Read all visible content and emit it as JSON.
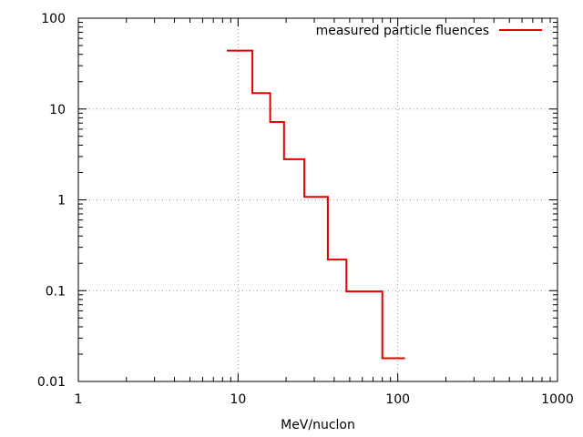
{
  "chart_data": {
    "type": "line",
    "step": true,
    "title": "",
    "xlabel": "MeV/nuclon",
    "ylabel": "",
    "x_scale": "log",
    "y_scale": "log",
    "xlim": [
      1,
      1000
    ],
    "ylim": [
      0.01,
      100
    ],
    "grid": true,
    "legend_position": "top-right",
    "x_ticks": [
      {
        "value": 1,
        "label": "1"
      },
      {
        "value": 10,
        "label": "10"
      },
      {
        "value": 100,
        "label": "100"
      },
      {
        "value": 1000,
        "label": "1000"
      }
    ],
    "y_ticks": [
      {
        "value": 0.01,
        "label": "0.01"
      },
      {
        "value": 0.1,
        "label": "0.1"
      },
      {
        "value": 1,
        "label": "1"
      },
      {
        "value": 10,
        "label": "10"
      },
      {
        "value": 100,
        "label": "100"
      }
    ],
    "series": [
      {
        "name": "measured particle fluences",
        "color": "#e00000",
        "bins": [
          {
            "x0": 8.5,
            "x1": 12.3,
            "y": 44
          },
          {
            "x0": 12.3,
            "x1": 15.9,
            "y": 15
          },
          {
            "x0": 15.9,
            "x1": 19.4,
            "y": 7.2
          },
          {
            "x0": 19.4,
            "x1": 26.0,
            "y": 2.8
          },
          {
            "x0": 26.0,
            "x1": 36.5,
            "y": 1.08
          },
          {
            "x0": 36.5,
            "x1": 47.7,
            "y": 0.22
          },
          {
            "x0": 47.7,
            "x1": 80.0,
            "y": 0.098
          },
          {
            "x0": 80.0,
            "x1": 111.0,
            "y": 0.018
          }
        ]
      }
    ]
  }
}
